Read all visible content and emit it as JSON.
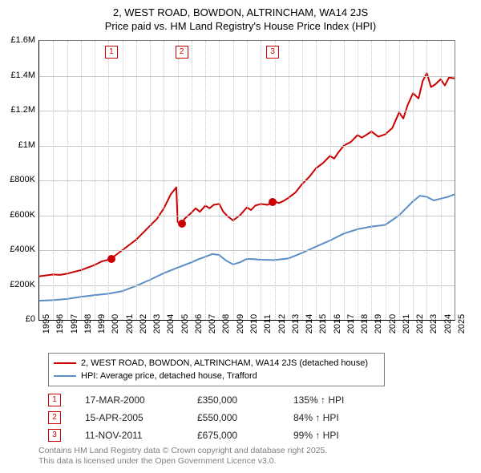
{
  "title_line1": "2, WEST ROAD, BOWDON, ALTRINCHAM, WA14 2JS",
  "title_line2": "Price paid vs. HM Land Registry's House Price Index (HPI)",
  "chart": {
    "type": "line",
    "background_color": "#ffffff",
    "grid_color": "#c8c8c8",
    "axis_color": "#000000",
    "label_fontsize": 11,
    "x_min_year": 1995,
    "x_max_year": 2025,
    "y_min": 0,
    "y_max": 1600000,
    "y_tick_step": 200000,
    "y_tick_labels": [
      "£0",
      "£200K",
      "£400K",
      "£600K",
      "£800K",
      "£1M",
      "£1.2M",
      "£1.4M",
      "£1.6M"
    ],
    "x_tick_years": [
      1995,
      1996,
      1997,
      1998,
      1999,
      2000,
      2001,
      2002,
      2003,
      2004,
      2005,
      2006,
      2007,
      2008,
      2009,
      2010,
      2011,
      2012,
      2013,
      2014,
      2015,
      2016,
      2017,
      2018,
      2019,
      2020,
      2021,
      2022,
      2023,
      2024,
      2025
    ],
    "series": [
      {
        "name": "property",
        "color": "#cc0000",
        "line_width": 2,
        "data": [
          [
            1995.0,
            250000
          ],
          [
            1995.5,
            255000
          ],
          [
            1996.0,
            260000
          ],
          [
            1996.5,
            258000
          ],
          [
            1997.0,
            265000
          ],
          [
            1997.5,
            275000
          ],
          [
            1998.0,
            285000
          ],
          [
            1998.5,
            300000
          ],
          [
            1999.0,
            315000
          ],
          [
            1999.5,
            335000
          ],
          [
            2000.0,
            345000
          ],
          [
            2000.2,
            350000
          ],
          [
            2000.5,
            370000
          ],
          [
            2001.0,
            400000
          ],
          [
            2001.5,
            430000
          ],
          [
            2002.0,
            460000
          ],
          [
            2002.5,
            500000
          ],
          [
            2003.0,
            540000
          ],
          [
            2003.5,
            580000
          ],
          [
            2004.0,
            640000
          ],
          [
            2004.5,
            720000
          ],
          [
            2004.9,
            760000
          ],
          [
            2005.0,
            560000
          ],
          [
            2005.29,
            550000
          ],
          [
            2005.5,
            580000
          ],
          [
            2006.0,
            615000
          ],
          [
            2006.3,
            640000
          ],
          [
            2006.6,
            620000
          ],
          [
            2007.0,
            655000
          ],
          [
            2007.3,
            640000
          ],
          [
            2007.6,
            660000
          ],
          [
            2008.0,
            665000
          ],
          [
            2008.3,
            620000
          ],
          [
            2008.6,
            595000
          ],
          [
            2009.0,
            570000
          ],
          [
            2009.5,
            600000
          ],
          [
            2010.0,
            645000
          ],
          [
            2010.3,
            630000
          ],
          [
            2010.6,
            655000
          ],
          [
            2011.0,
            665000
          ],
          [
            2011.5,
            660000
          ],
          [
            2011.86,
            675000
          ],
          [
            2012.0,
            680000
          ],
          [
            2012.3,
            670000
          ],
          [
            2012.6,
            680000
          ],
          [
            2013.0,
            700000
          ],
          [
            2013.5,
            730000
          ],
          [
            2014.0,
            780000
          ],
          [
            2014.5,
            820000
          ],
          [
            2015.0,
            870000
          ],
          [
            2015.5,
            900000
          ],
          [
            2016.0,
            940000
          ],
          [
            2016.3,
            925000
          ],
          [
            2016.6,
            960000
          ],
          [
            2017.0,
            1000000
          ],
          [
            2017.5,
            1020000
          ],
          [
            2018.0,
            1060000
          ],
          [
            2018.3,
            1045000
          ],
          [
            2018.6,
            1060000
          ],
          [
            2019.0,
            1080000
          ],
          [
            2019.5,
            1050000
          ],
          [
            2020.0,
            1065000
          ],
          [
            2020.5,
            1100000
          ],
          [
            2021.0,
            1190000
          ],
          [
            2021.3,
            1155000
          ],
          [
            2021.6,
            1230000
          ],
          [
            2022.0,
            1300000
          ],
          [
            2022.4,
            1270000
          ],
          [
            2022.7,
            1370000
          ],
          [
            2023.0,
            1415000
          ],
          [
            2023.3,
            1335000
          ],
          [
            2023.6,
            1350000
          ],
          [
            2024.0,
            1380000
          ],
          [
            2024.3,
            1345000
          ],
          [
            2024.6,
            1390000
          ],
          [
            2025.0,
            1385000
          ]
        ]
      },
      {
        "name": "hpi",
        "color": "#5b8fc7",
        "line_width": 2,
        "data": [
          [
            1995.0,
            110000
          ],
          [
            1996.0,
            113000
          ],
          [
            1997.0,
            120000
          ],
          [
            1998.0,
            132000
          ],
          [
            1999.0,
            142000
          ],
          [
            2000.0,
            150000
          ],
          [
            2001.0,
            165000
          ],
          [
            2002.0,
            195000
          ],
          [
            2003.0,
            230000
          ],
          [
            2004.0,
            268000
          ],
          [
            2005.0,
            300000
          ],
          [
            2006.0,
            330000
          ],
          [
            2006.5,
            348000
          ],
          [
            2007.0,
            362000
          ],
          [
            2007.5,
            378000
          ],
          [
            2008.0,
            372000
          ],
          [
            2008.5,
            340000
          ],
          [
            2009.0,
            318000
          ],
          [
            2009.5,
            330000
          ],
          [
            2010.0,
            350000
          ],
          [
            2010.5,
            348000
          ],
          [
            2011.0,
            345000
          ],
          [
            2012.0,
            343000
          ],
          [
            2013.0,
            352000
          ],
          [
            2014.0,
            385000
          ],
          [
            2015.0,
            420000
          ],
          [
            2016.0,
            455000
          ],
          [
            2017.0,
            495000
          ],
          [
            2018.0,
            520000
          ],
          [
            2019.0,
            535000
          ],
          [
            2020.0,
            545000
          ],
          [
            2021.0,
            600000
          ],
          [
            2022.0,
            680000
          ],
          [
            2022.5,
            712000
          ],
          [
            2023.0,
            705000
          ],
          [
            2023.5,
            685000
          ],
          [
            2024.0,
            695000
          ],
          [
            2024.5,
            705000
          ],
          [
            2025.0,
            720000
          ]
        ]
      }
    ],
    "sale_markers": [
      {
        "n": "1",
        "year": 2000.21,
        "price": 350000
      },
      {
        "n": "2",
        "year": 2005.29,
        "price": 550000
      },
      {
        "n": "3",
        "year": 2011.86,
        "price": 675000
      }
    ]
  },
  "legend": {
    "items": [
      {
        "color": "#cc0000",
        "label": "2, WEST ROAD, BOWDON, ALTRINCHAM, WA14 2JS (detached house)"
      },
      {
        "color": "#5b8fc7",
        "label": "HPI: Average price, detached house, Trafford"
      }
    ]
  },
  "events": [
    {
      "n": "1",
      "date": "17-MAR-2000",
      "price": "£350,000",
      "pct": "135% ↑ HPI"
    },
    {
      "n": "2",
      "date": "15-APR-2005",
      "price": "£550,000",
      "pct": "84% ↑ HPI"
    },
    {
      "n": "3",
      "date": "11-NOV-2011",
      "price": "£675,000",
      "pct": "99% ↑ HPI"
    }
  ],
  "footer_line1": "Contains HM Land Registry data © Crown copyright and database right 2025.",
  "footer_line2": "This data is licensed under the Open Government Licence v3.0."
}
